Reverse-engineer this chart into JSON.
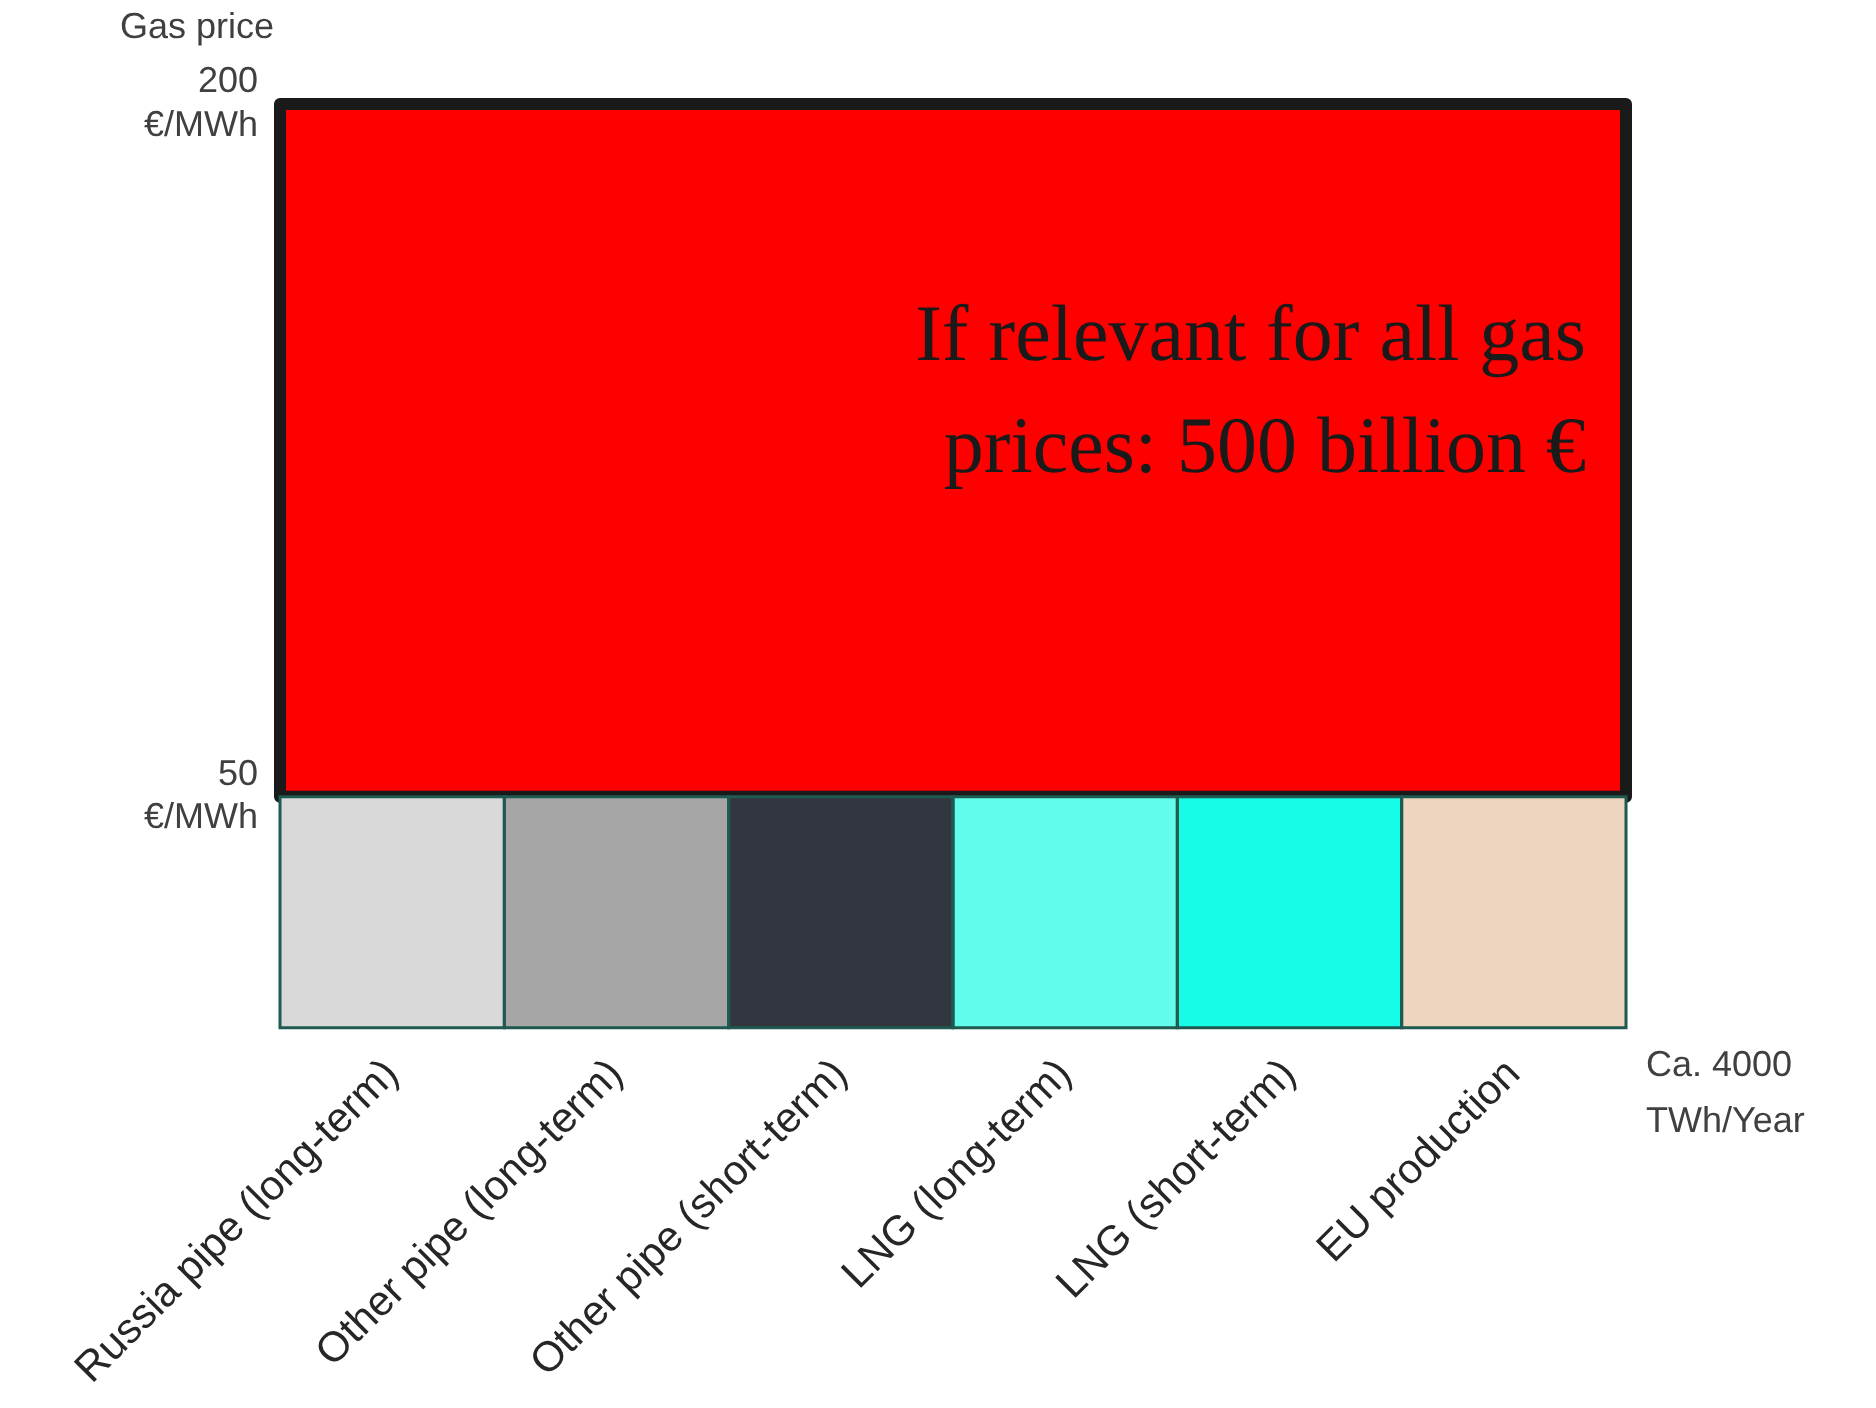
{
  "chart_data": {
    "type": "bar",
    "ylabel": "Gas price",
    "xlabel": "Ca. 4000 TWh/Year",
    "categories": [
      "Russia pipe (long-term)",
      "Other pipe (long-term)",
      "Other pipe (short-term)",
      "LNG (long-term)",
      "LNG (short-term)",
      "EU production"
    ],
    "values": [
      50,
      50,
      50,
      50,
      50,
      50
    ],
    "colors": [
      "#d9d9d9",
      "#a6a6a6",
      "#32363e",
      "#63fcec",
      "#16fce6",
      "#edd5bf"
    ],
    "ylim": [
      0,
      200
    ],
    "yticks": [
      {
        "value": 50,
        "label": "50 €/MWh"
      },
      {
        "value": 200,
        "label": "200 €/MWh"
      }
    ],
    "bands": [
      {
        "axis": "y",
        "from": 50,
        "to": 200,
        "label": "If relevant for all gas prices: 500 billion €",
        "color": "#ff0000"
      }
    ],
    "grid": false,
    "legend": false
  }
}
